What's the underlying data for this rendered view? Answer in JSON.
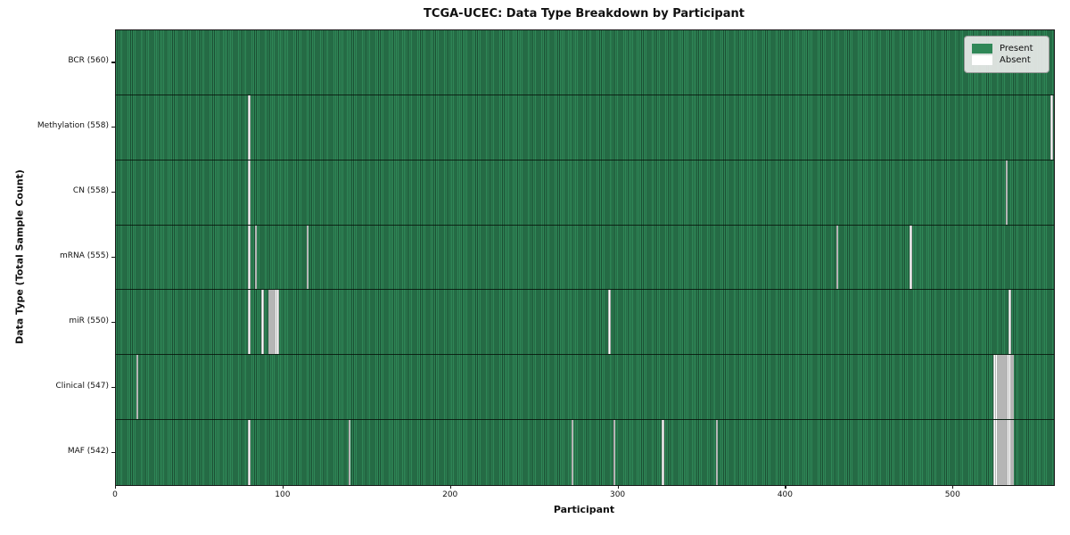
{
  "chart_data": {
    "type": "heatmap",
    "title": "TCGA-UCEC: Data Type Breakdown by Participant",
    "xlabel": "Participant",
    "ylabel": "Data Type (Total Sample Count)",
    "x_range": [
      0,
      560
    ],
    "n_participants": 560,
    "x_ticks": [
      0,
      100,
      200,
      300,
      400,
      500
    ],
    "grid": false,
    "legend": {
      "position": "upper right",
      "entries": [
        {
          "name": "present",
          "label": "Present",
          "color": "#2f8757"
        },
        {
          "name": "absent",
          "label": "Absent",
          "color": "#ffffff"
        }
      ]
    },
    "colors": {
      "present": "#2f8757",
      "present_stripe": "#1b4f33",
      "absent": "#ffffff",
      "absent_edge": "#b5b5b5"
    },
    "rows": [
      {
        "label": "BCR (560)",
        "data_type": "BCR",
        "sample_count": 560,
        "absent_participants": []
      },
      {
        "label": "Methylation (558)",
        "data_type": "Methylation",
        "sample_count": 558,
        "absent_participants": [
          79,
          558
        ]
      },
      {
        "label": "CN (558)",
        "data_type": "CN",
        "sample_count": 558,
        "absent_participants": [
          79,
          531
        ]
      },
      {
        "label": "mRNA (555)",
        "data_type": "mRNA",
        "sample_count": 555,
        "absent_participants": [
          79,
          83,
          114,
          430,
          474
        ]
      },
      {
        "label": "miR (550)",
        "data_type": "miR",
        "sample_count": 550,
        "absent_participants": [
          79,
          87,
          91,
          92,
          93,
          94,
          95,
          96,
          294,
          533
        ]
      },
      {
        "label": "Clinical (547)",
        "data_type": "Clinical",
        "sample_count": 547,
        "absent_participants": [
          12,
          524,
          525,
          526,
          527,
          528,
          529,
          530,
          531,
          532,
          533,
          534,
          535
        ]
      },
      {
        "label": "MAF (542)",
        "data_type": "MAF",
        "sample_count": 542,
        "absent_participants": [
          79,
          139,
          272,
          297,
          326,
          358,
          524,
          525,
          526,
          527,
          528,
          529,
          530,
          531,
          532,
          533,
          534,
          535
        ]
      }
    ]
  }
}
